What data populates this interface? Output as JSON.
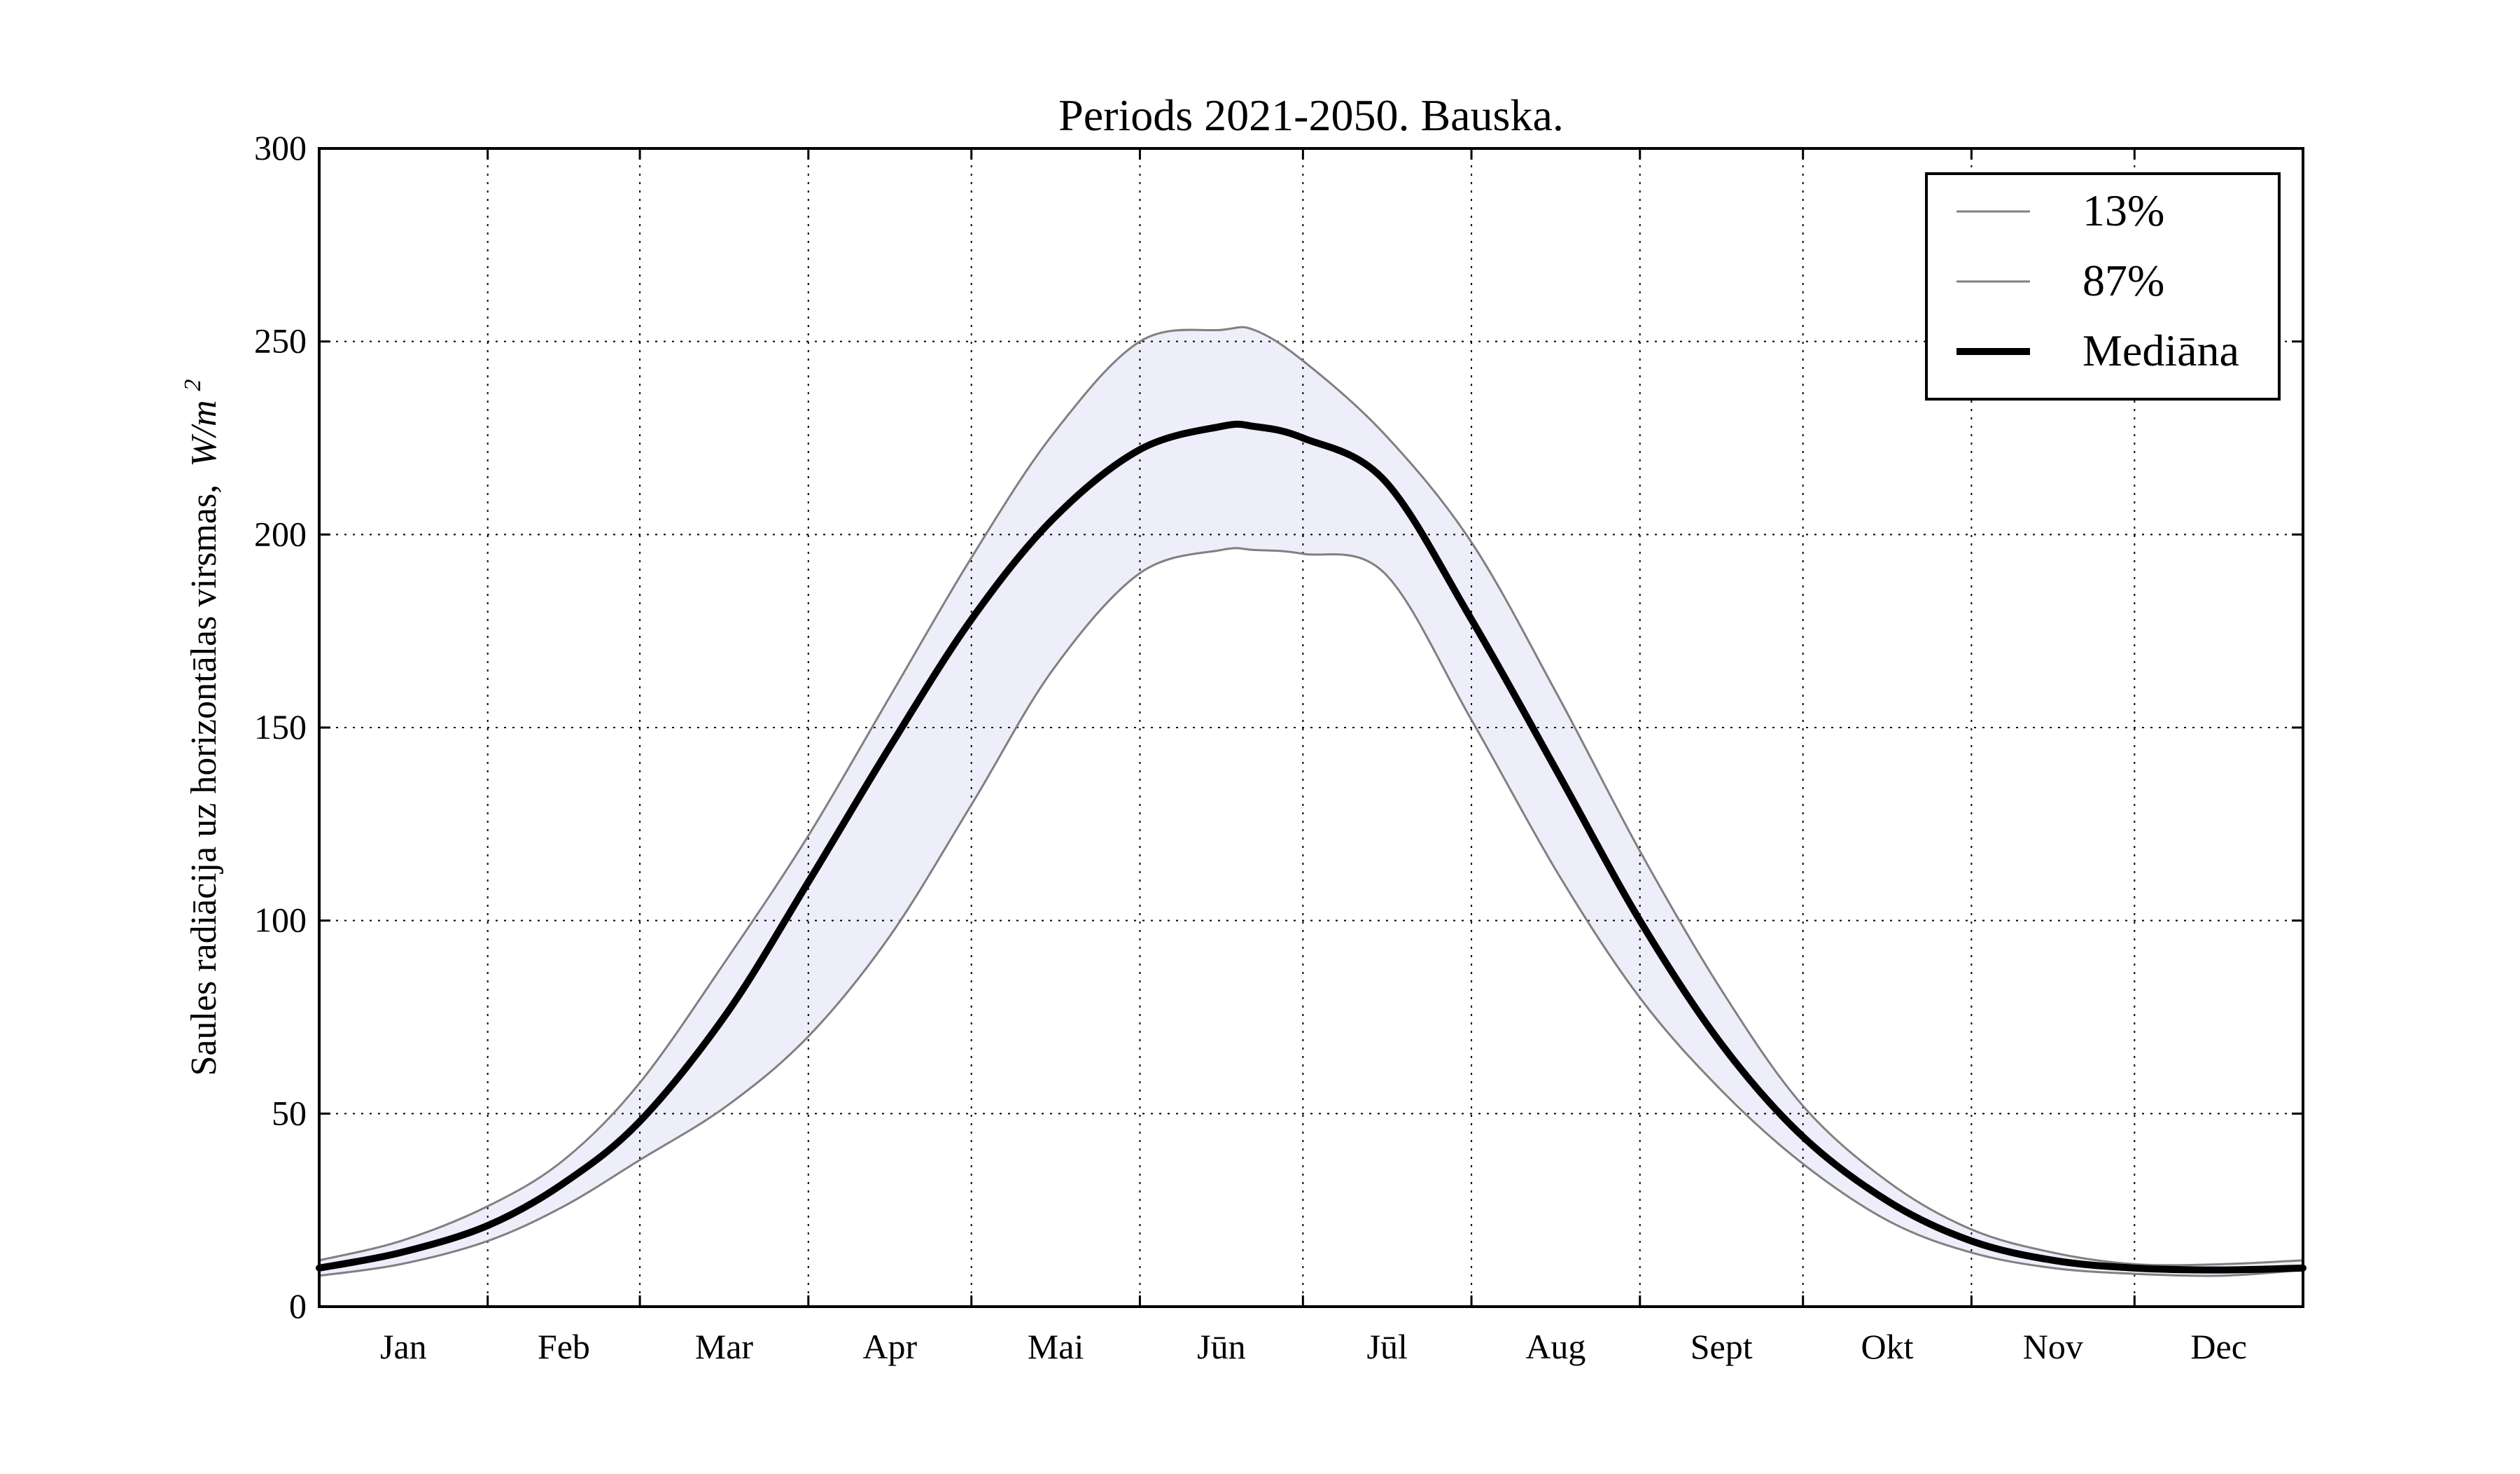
{
  "chart_data": {
    "type": "line",
    "title": "Periods 2021-2050. Bauska.",
    "xlabel": "",
    "ylabel": "Saules radiācija uz horizontālas virsmas,",
    "ylabel_unit": "W/m",
    "ylabel_unit_exp": "2",
    "ylim": [
      0,
      300
    ],
    "yticks": [
      0,
      50,
      100,
      150,
      200,
      250,
      300
    ],
    "xlim": [
      0,
      365
    ],
    "grid": true,
    "legend_position": "top-right",
    "month_boundaries": [
      0,
      31,
      59,
      90,
      120,
      151,
      181,
      212,
      243,
      273,
      304,
      334,
      365
    ],
    "month_labels": [
      "Jan",
      "Feb",
      "Mar",
      "Apr",
      "Mai",
      "Jūn",
      "Jūl",
      "Aug",
      "Sept",
      "Okt",
      "Nov",
      "Dec"
    ],
    "x": [
      0,
      15,
      31,
      45,
      59,
      75,
      90,
      105,
      120,
      135,
      151,
      166,
      172,
      181,
      196,
      212,
      228,
      243,
      258,
      273,
      289,
      304,
      319,
      334,
      350,
      365
    ],
    "series": [
      {
        "name": "13%",
        "color": "#808080",
        "values": [
          8,
          11,
          17,
          26,
          38,
          52,
          70,
          96,
          130,
          165,
          190,
          196,
          196,
          195,
          190,
          152,
          112,
          80,
          56,
          37,
          22,
          14,
          10,
          8.5,
          8,
          9.5
        ]
      },
      {
        "name": "87%",
        "color": "#808080",
        "values": [
          12,
          17,
          26,
          38,
          58,
          90,
          122,
          158,
          194,
          226,
          250,
          253,
          253,
          245,
          226,
          198,
          158,
          118,
          82,
          52,
          32,
          20,
          14,
          11,
          11,
          12
        ]
      },
      {
        "name": "Mediāna",
        "color": "#000000",
        "values": [
          10,
          14,
          21,
          32,
          48,
          76,
          110,
          145,
          178,
          204,
          222,
          228,
          228,
          225,
          214,
          178,
          138,
          100,
          68,
          44,
          27,
          17,
          12,
          10,
          9.5,
          10
        ]
      }
    ],
    "band_fill": "#eeeefb"
  }
}
